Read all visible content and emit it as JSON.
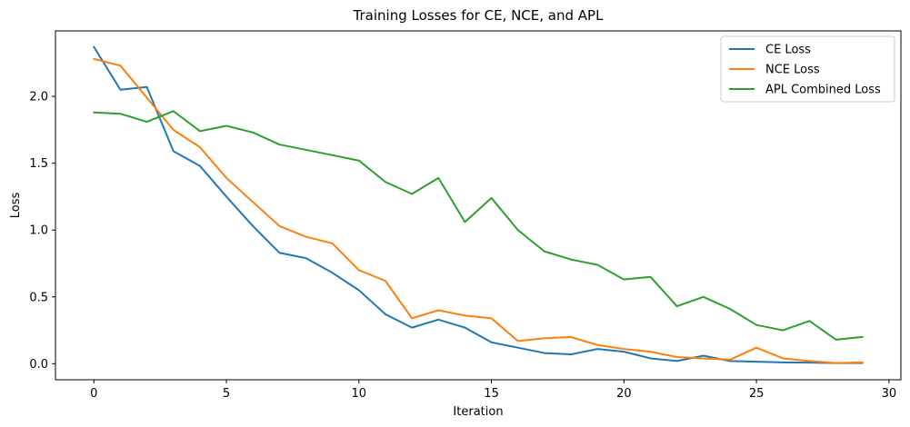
{
  "chart_data": {
    "type": "line",
    "title": "Training Losses for CE, NCE, and APL",
    "xlabel": "Iteration",
    "ylabel": "Loss",
    "xlim": [
      -1.45,
      30.45
    ],
    "ylim": [
      -0.12,
      2.49
    ],
    "xticks": [
      0,
      5,
      10,
      15,
      20,
      25,
      30
    ],
    "xtick_labels": [
      "0",
      "5",
      "10",
      "15",
      "20",
      "25",
      "30"
    ],
    "yticks": [
      0.0,
      0.5,
      1.0,
      1.5,
      2.0
    ],
    "ytick_labels": [
      "0.0",
      "0.5",
      "1.0",
      "1.5",
      "2.0"
    ],
    "grid": false,
    "legend_position": "top-right",
    "x": [
      0,
      1,
      2,
      3,
      4,
      5,
      6,
      7,
      8,
      9,
      10,
      11,
      12,
      13,
      14,
      15,
      16,
      17,
      18,
      19,
      20,
      21,
      22,
      23,
      24,
      25,
      26,
      27,
      28,
      29
    ],
    "series": [
      {
        "name": "CE Loss",
        "color": "#1f77b4",
        "values": [
          2.37,
          2.05,
          2.07,
          1.59,
          1.48,
          1.25,
          1.03,
          0.83,
          0.79,
          0.68,
          0.55,
          0.37,
          0.27,
          0.33,
          0.27,
          0.16,
          0.12,
          0.08,
          0.07,
          0.11,
          0.09,
          0.04,
          0.02,
          0.06,
          0.02,
          0.015,
          0.01,
          0.008,
          0.005,
          0.005
        ]
      },
      {
        "name": "NCE Loss",
        "color": "#ff7f0e",
        "values": [
          2.28,
          2.23,
          1.99,
          1.75,
          1.62,
          1.39,
          1.21,
          1.03,
          0.95,
          0.9,
          0.7,
          0.62,
          0.34,
          0.4,
          0.36,
          0.34,
          0.17,
          0.19,
          0.2,
          0.14,
          0.11,
          0.09,
          0.05,
          0.04,
          0.03,
          0.12,
          0.04,
          0.02,
          0.005,
          0.01
        ]
      },
      {
        "name": "APL Combined Loss",
        "color": "#2ca02c",
        "values": [
          1.88,
          1.87,
          1.81,
          1.89,
          1.74,
          1.78,
          1.73,
          1.64,
          1.6,
          1.56,
          1.52,
          1.36,
          1.27,
          1.39,
          1.06,
          1.24,
          1.0,
          0.84,
          0.78,
          0.74,
          0.63,
          0.65,
          0.43,
          0.5,
          0.41,
          0.29,
          0.25,
          0.32,
          0.18,
          0.2
        ]
      }
    ]
  }
}
